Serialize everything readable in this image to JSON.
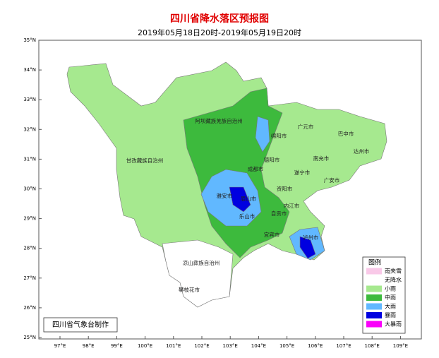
{
  "title": "四川省降水落区预报图",
  "subtitle": "2019年05月18日20时-2019年05月19日20时",
  "map": {
    "lat_ticks": [
      {
        "value": 25,
        "label": "25°N"
      },
      {
        "value": 26,
        "label": "26°N"
      },
      {
        "value": 27,
        "label": "27°N"
      },
      {
        "value": 28,
        "label": "28°N"
      },
      {
        "value": 29,
        "label": "29°N"
      },
      {
        "value": 30,
        "label": "30°N"
      },
      {
        "value": 31,
        "label": "31°N"
      },
      {
        "value": 32,
        "label": "32°N"
      },
      {
        "value": 33,
        "label": "33°N"
      },
      {
        "value": 34,
        "label": "34°N"
      },
      {
        "value": 35,
        "label": "35°N"
      }
    ],
    "lon_ticks": [
      {
        "value": 97,
        "label": "97°E"
      },
      {
        "value": 98,
        "label": "98°E"
      },
      {
        "value": 99,
        "label": "99°E"
      },
      {
        "value": 100,
        "label": "100°E"
      },
      {
        "value": 101,
        "label": "101°E"
      },
      {
        "value": 102,
        "label": "102°E"
      },
      {
        "value": 103,
        "label": "103°E"
      },
      {
        "value": 104,
        "label": "104°E"
      },
      {
        "value": 105,
        "label": "105°E"
      },
      {
        "value": 106,
        "label": "106°E"
      },
      {
        "value": 107,
        "label": "107°E"
      },
      {
        "value": 108,
        "label": "108°E"
      },
      {
        "value": 109,
        "label": "109°E"
      }
    ],
    "places": [
      "阿坝藏族羌族自治州",
      "甘孜藏族自治州",
      "凉山彝族自治州",
      "攀枝花市",
      "绵阳市",
      "广元市",
      "巴中市",
      "达州市",
      "南充市",
      "德阳市",
      "成都市",
      "遂宁市",
      "广安市",
      "资阳市",
      "雅安市",
      "眉山市",
      "内江市",
      "乐山市",
      "自贡市",
      "宜宾市",
      "泸州市"
    ]
  },
  "legend": {
    "title": "图例",
    "items": [
      {
        "label": "雨夹雪",
        "color": "#f9c9e8"
      },
      {
        "label": "无降水",
        "color": "#ffffff"
      },
      {
        "label": "小雨",
        "color": "#a6e98f"
      },
      {
        "label": "中雨",
        "color": "#3dba3d"
      },
      {
        "label": "大雨",
        "color": "#61b8ff"
      },
      {
        "label": "暴雨",
        "color": "#0000e0"
      },
      {
        "label": "大暴雨",
        "color": "#fa00fa"
      }
    ]
  },
  "footer": "四川省气象台制作"
}
